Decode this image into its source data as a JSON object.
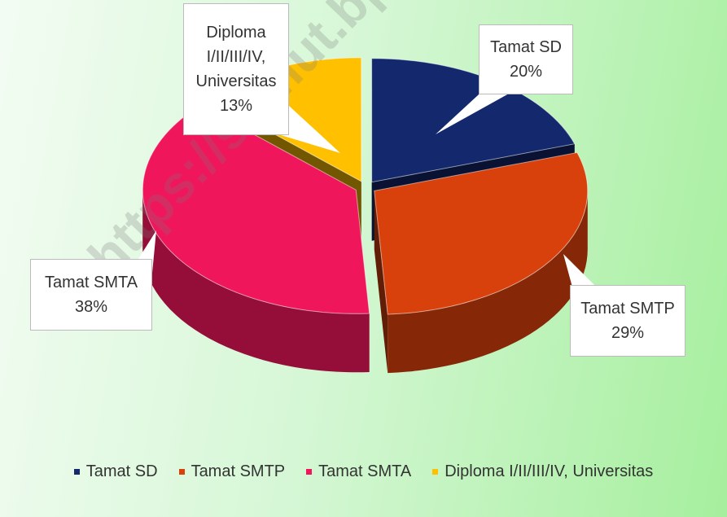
{
  "chart_data": {
    "type": "pie3d",
    "categories": [
      "Tamat SD",
      "Tamat SMTP",
      "Tamat SMTA",
      "Diploma I/II/III/IV, Universitas"
    ],
    "values": [
      20,
      29,
      38,
      13
    ],
    "value_labels": [
      "20%",
      "29%",
      "38%",
      "13%"
    ],
    "colors": [
      "#14286e",
      "#d8400c",
      "#f0165c",
      "#ffc000"
    ],
    "legend": "bottom"
  },
  "watermark": "https://sumut.bps.go.id"
}
